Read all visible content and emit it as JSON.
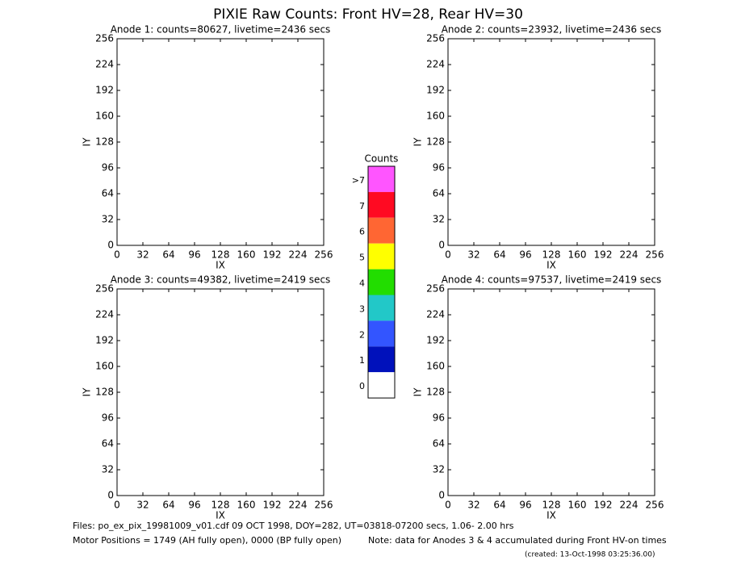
{
  "title": "PIXIE Raw Counts:  Front HV=28, Rear HV=30",
  "chart_data": [
    {
      "type": "image",
      "title": "Anode 1: counts=80627, livetime=2436 secs",
      "x_label": "IX",
      "y_label": "IY",
      "xlim": [
        0,
        256
      ],
      "ylim": [
        0,
        256
      ],
      "xticks": [
        0,
        32,
        64,
        96,
        128,
        160,
        192,
        224,
        256
      ],
      "yticks": [
        0,
        32,
        64,
        96,
        128,
        160,
        192,
        224,
        256
      ]
    },
    {
      "type": "image",
      "title": "Anode 2: counts=23932, livetime=2436 secs",
      "x_label": "IX",
      "y_label": "IY",
      "xlim": [
        0,
        256
      ],
      "ylim": [
        0,
        256
      ],
      "xticks": [
        0,
        32,
        64,
        96,
        128,
        160,
        192,
        224,
        256
      ],
      "yticks": [
        0,
        32,
        64,
        96,
        128,
        160,
        192,
        224,
        256
      ]
    },
    {
      "type": "image",
      "title": "Anode 3: counts=49382, livetime=2419 secs",
      "x_label": "IX",
      "y_label": "IY",
      "xlim": [
        0,
        256
      ],
      "ylim": [
        0,
        256
      ],
      "xticks": [
        0,
        32,
        64,
        96,
        128,
        160,
        192,
        224,
        256
      ],
      "yticks": [
        0,
        32,
        64,
        96,
        128,
        160,
        192,
        224,
        256
      ]
    },
    {
      "type": "image",
      "title": "Anode 4: counts=97537, livetime=2419 secs",
      "x_label": "IX",
      "y_label": "IY",
      "xlim": [
        0,
        256
      ],
      "ylim": [
        0,
        256
      ],
      "xticks": [
        0,
        32,
        64,
        96,
        128,
        160,
        192,
        224,
        256
      ],
      "yticks": [
        0,
        32,
        64,
        96,
        128,
        160,
        192,
        224,
        256
      ]
    }
  ],
  "colorbar": {
    "title": "Counts",
    "levels": [
      {
        "label": ">7",
        "color": "#ff55ff"
      },
      {
        "label": "7",
        "color": "#ff0a22"
      },
      {
        "label": "6",
        "color": "#ff6633"
      },
      {
        "label": "5",
        "color": "#ffff00"
      },
      {
        "label": "4",
        "color": "#22dd00"
      },
      {
        "label": "3",
        "color": "#22c8c8"
      },
      {
        "label": "2",
        "color": "#3355ff"
      },
      {
        "label": "1",
        "color": "#0011bb"
      },
      {
        "label": "0",
        "color": "#ffffff"
      }
    ]
  },
  "footer": {
    "files": "Files: po_ex_pix_19981009_v01.cdf    09 OCT 1998, DOY=282, UT=03818-07200 secs,  1.06- 2.00 hrs",
    "motor": "Motor Positions = 1749 (AH fully open), 0000 (BP fully open)",
    "note": "Note: data for Anodes 3 & 4 accumulated during Front HV-on times",
    "created": "(created: 13-Oct-1998 03:25:36.00)"
  }
}
